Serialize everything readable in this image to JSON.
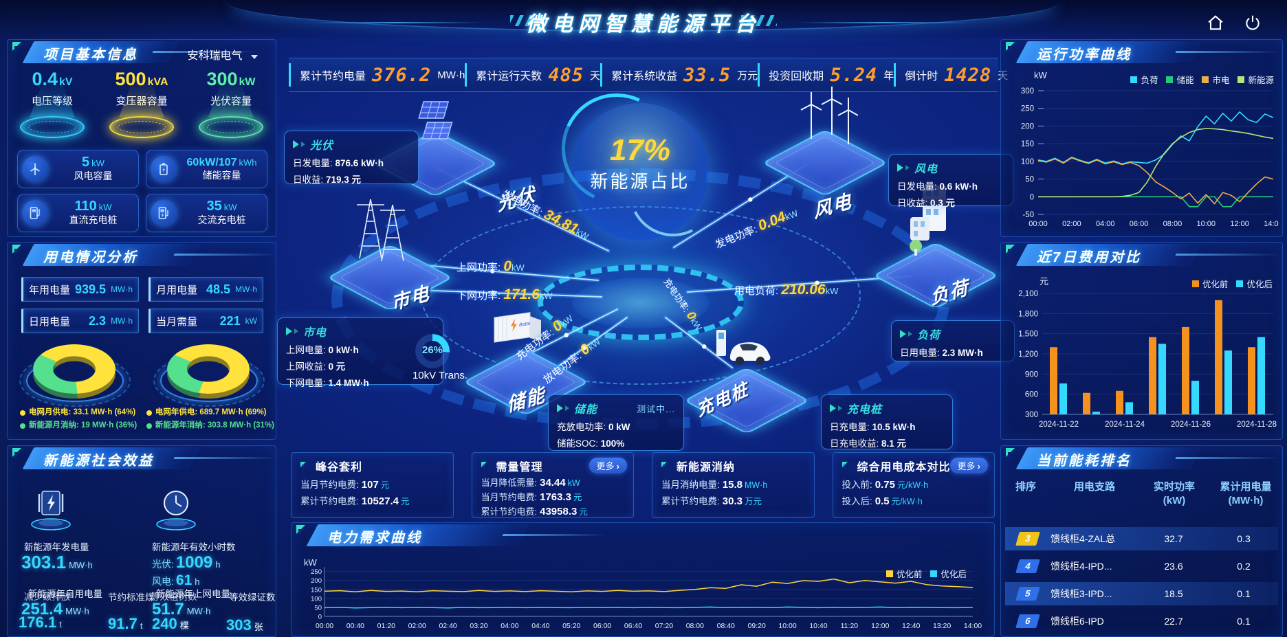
{
  "header": {
    "title": "微电网智慧能源平台"
  },
  "top_stats": [
    {
      "label": "累计节约电量",
      "value": "376.2",
      "unit": "MW·h"
    },
    {
      "label": "累计运行天数",
      "value": "485",
      "unit": "天"
    },
    {
      "label": "累计系统收益",
      "value": "33.5",
      "unit": "万元"
    },
    {
      "label": "投资回收期",
      "value": "5.24",
      "unit": "年"
    },
    {
      "label": "倒计时",
      "value": "1428",
      "unit": "天"
    }
  ],
  "project_info": {
    "title": "项目基本信息",
    "company": "安科瑞电气",
    "podiums": [
      {
        "value": "0.4",
        "unit": "kV",
        "label": "电压等级",
        "color": "#35d8ff"
      },
      {
        "value": "500",
        "unit": "kVA",
        "label": "变压器容量",
        "color": "#ffe33c"
      },
      {
        "value": "300",
        "unit": "kW",
        "label": "光伏容量",
        "color": "#5cf0a8"
      }
    ],
    "cards": [
      {
        "icon": "wind-turbine-icon",
        "value": "5",
        "unit": "kW",
        "label": "风电容量"
      },
      {
        "icon": "battery-icon",
        "value": "60kW/107",
        "unit": "kWh",
        "label": "储能容量"
      },
      {
        "icon": "dc-charger-icon",
        "value": "110",
        "unit": "kW",
        "label": "直流充电桩"
      },
      {
        "icon": "ac-charger-icon",
        "value": "35",
        "unit": "kW",
        "label": "交流充电桩"
      }
    ]
  },
  "usage": {
    "title": "用电情况分析",
    "stats": [
      {
        "label": "年用电量",
        "value": "939.5",
        "unit": "MW·h"
      },
      {
        "label": "月用电量",
        "value": "48.5",
        "unit": "MW·h"
      },
      {
        "label": "日用电量",
        "value": "2.3",
        "unit": "MW·h"
      },
      {
        "label": "当月需量",
        "value": "221",
        "unit": "kW"
      }
    ],
    "donuts": [
      {
        "slices": [
          {
            "label": "电网月供电",
            "value": "33.1 MW·h (64%)",
            "pct": 64,
            "color": "#ffe33c"
          },
          {
            "label": "新能源月消纳",
            "value": "19 MW·h (36%)",
            "pct": 36,
            "color": "#54e08c"
          }
        ]
      },
      {
        "slices": [
          {
            "label": "电网年供电",
            "value": "689.7 MW·h (69%)",
            "pct": 69,
            "color": "#ffe33c"
          },
          {
            "label": "新能源年消纳",
            "value": "303.8 MW·h (31%)",
            "pct": 31,
            "color": "#54e08c"
          }
        ]
      }
    ]
  },
  "social": {
    "title": "新能源社会效益",
    "gen": {
      "label": "新能源年发电量",
      "value": "303.1",
      "unit": "MW·h"
    },
    "hours": {
      "label": "新能源年有效小时数",
      "pv_label": "光伏:",
      "pv_value": "1009",
      "pv_unit": "h",
      "wind_label": "风电:",
      "wind_value": "61",
      "wind_unit": "h"
    },
    "self_use": {
      "label": "新能源年自用电量",
      "value": "251.4",
      "unit": "MW·h"
    },
    "co2": {
      "label": "减少碳排放",
      "value": "176.1",
      "unit": "t"
    },
    "coal": {
      "label": "节约标准煤",
      "value": "91.7",
      "unit": "t"
    },
    "export": {
      "label": "新能源年上网电量",
      "value": "51.7",
      "unit": "MW·h"
    },
    "trees": {
      "label": "等效植树数",
      "value": "240",
      "unit": "棵"
    },
    "certs": {
      "label": "等效绿证数",
      "value": "303",
      "unit": "张"
    }
  },
  "center": {
    "kpi_value": "17%",
    "kpi_label": "新能源占比",
    "nodes": {
      "pv": "光伏",
      "grid": "市电",
      "storage": "储能",
      "wind": "风电",
      "load": "负荷",
      "charger": "充电桩"
    },
    "flows": {
      "pv_gen": {
        "label": "发电功率:",
        "value": "34.81",
        "unit": "kW"
      },
      "grid_up": {
        "label": "上网功率:",
        "value": "0",
        "unit": "kW"
      },
      "grid_down": {
        "label": "下网功率:",
        "value": "171.6",
        "unit": "kW"
      },
      "charge": {
        "label": "充电功率:",
        "value": "0",
        "unit": "kW"
      },
      "discharge": {
        "label": "放电功率:",
        "value": "0",
        "unit": "kW"
      },
      "wind_gen": {
        "label": "发电功率:",
        "value": "0.04",
        "unit": "kW"
      },
      "load_power": {
        "label": "用电负荷:",
        "value": "210.06",
        "unit": "kW"
      },
      "charger_power": {
        "label": "充电功率:",
        "value": "0",
        "unit": "kW"
      }
    },
    "transformer": {
      "pct": 26,
      "pct_text": "26%",
      "label": "10kV Trans."
    },
    "panels": {
      "pv": {
        "title": "光伏",
        "rows": [
          {
            "k": "日发电量:",
            "v": "876.6 kW·h"
          },
          {
            "k": "日收益:",
            "v": "719.3 元"
          }
        ]
      },
      "grid": {
        "title": "市电",
        "rows": [
          {
            "k": "上网电量:",
            "v": "0 kW·h"
          },
          {
            "k": "上网收益:",
            "v": "0 元"
          },
          {
            "k": "下网电量:",
            "v": "1.4 MW·h"
          }
        ]
      },
      "storage": {
        "title": "储能",
        "badge": "测试中...",
        "rows": [
          {
            "k": "充放电功率:",
            "v": "0 kW"
          },
          {
            "k": "储能SOC:",
            "v": "100%"
          }
        ]
      },
      "wind": {
        "title": "风电",
        "rows": [
          {
            "k": "日发电量:",
            "v": "0.6 kW·h"
          },
          {
            "k": "日收益:",
            "v": "0.3 元"
          }
        ]
      },
      "load": {
        "title": "负荷",
        "rows": [
          {
            "k": "日用电量:",
            "v": "2.3 MW·h"
          }
        ]
      },
      "charger": {
        "title": "充电桩",
        "rows": [
          {
            "k": "日充电量:",
            "v": "10.5 kW·h"
          },
          {
            "k": "日充电收益:",
            "v": "8.1 元"
          }
        ]
      }
    }
  },
  "bottom_panels": [
    {
      "title": "峰谷套利",
      "more": "",
      "rows": [
        {
          "k": "当月节约电费:",
          "v": "107",
          "u": "元"
        },
        {
          "k": "累计节约电费:",
          "v": "10527.4",
          "u": "元"
        }
      ]
    },
    {
      "title": "需量管理",
      "more": "更多",
      "rows": [
        {
          "k": "当月降低需量:",
          "v": "34.44",
          "u": "kW"
        },
        {
          "k": "当月节约电费:",
          "v": "1763.3",
          "u": "元"
        },
        {
          "k": "累计节约电费:",
          "v": "43958.3",
          "u": "元"
        }
      ]
    },
    {
      "title": "新能源消纳",
      "more": "",
      "rows": [
        {
          "k": "当月消纳电量:",
          "v": "15.8",
          "u": "MW·h"
        },
        {
          "k": "累计节约电费:",
          "v": "30.3",
          "u": "万元"
        }
      ]
    },
    {
      "title": "综合用电成本对比",
      "more": "更多",
      "rows": [
        {
          "k": "投入前:",
          "v": "0.75",
          "u": "元/kW·h"
        },
        {
          "k": "投入后:",
          "v": "0.5",
          "u": "元/kW·h"
        }
      ]
    }
  ],
  "chart_data": [
    {
      "id": "power_curve",
      "type": "line",
      "title": "运行功率曲线",
      "ylabel": "kW",
      "ylim": [
        -50,
        300
      ],
      "yticks": [
        300,
        250,
        200,
        150,
        100,
        50,
        0,
        -50
      ],
      "xticks": [
        "00:00",
        "02:00",
        "04:00",
        "06:00",
        "08:00",
        "10:00",
        "12:00",
        "14:00"
      ],
      "legend_position": "top-right",
      "series": [
        {
          "name": "负荷",
          "color": "#35d8ff",
          "values": [
            104,
            100,
            109,
            97,
            112,
            103,
            96,
            106,
            95,
            101,
            93,
            99,
            97,
            95,
            104,
            120,
            148,
            172,
            158,
            198,
            228,
            206,
            236,
            214,
            240,
            218,
            210,
            234,
            224
          ]
        },
        {
          "name": "储能",
          "color": "#22c97e",
          "values": [
            0,
            0,
            0,
            0,
            0,
            0,
            0,
            0,
            0,
            0,
            0,
            0,
            0,
            0,
            0,
            0,
            0,
            0,
            -28,
            -28,
            0,
            0,
            -28,
            -28,
            0,
            0,
            0,
            0,
            0
          ]
        },
        {
          "name": "市电",
          "color": "#e8b04a",
          "values": [
            102,
            98,
            107,
            95,
            110,
            101,
            94,
            104,
            93,
            99,
            91,
            97,
            88,
            68,
            42,
            28,
            12,
            -6,
            10,
            -18,
            6,
            -20,
            12,
            4,
            -14,
            12,
            36,
            56,
            50
          ]
        },
        {
          "name": "新能源",
          "color": "#b2e874",
          "values": [
            0,
            0,
            0,
            0,
            0,
            0,
            0,
            0,
            0,
            0,
            1,
            4,
            12,
            42,
            86,
            122,
            150,
            168,
            182,
            190,
            193,
            192,
            190,
            186,
            183,
            179,
            174,
            169,
            165
          ]
        }
      ]
    },
    {
      "id": "cost_comp",
      "type": "bar",
      "title": "近7日费用对比",
      "ylabel": "元",
      "ylim": [
        300,
        2100
      ],
      "yticks": [
        "2,100",
        "1,800",
        "1,500",
        "1,200",
        "900",
        "600",
        "300"
      ],
      "categories": [
        "2024-11-22",
        "2024-11-23",
        "2024-11-24",
        "2024-11-25",
        "2024-11-26",
        "2024-11-27",
        "2024-11-28"
      ],
      "xtick_labels": [
        "2024-11-22",
        "2024-11-24",
        "2024-11-26",
        "2024-11-28"
      ],
      "legend_position": "top-right",
      "series": [
        {
          "name": "优化前",
          "color": "#f5921e",
          "values": [
            1300,
            620,
            650,
            1450,
            1600,
            2000,
            1300
          ]
        },
        {
          "name": "优化后",
          "color": "#35d8ff",
          "values": [
            760,
            340,
            480,
            1350,
            800,
            1250,
            1450
          ]
        }
      ]
    },
    {
      "id": "demand_curve",
      "type": "line",
      "title": "电力需求曲线",
      "ylabel": "kW",
      "ylim": [
        0,
        260
      ],
      "yticks": [
        250,
        200,
        150,
        100,
        50,
        0
      ],
      "xticks": [
        "00:00",
        "00:40",
        "01:20",
        "02:00",
        "02:40",
        "03:20",
        "04:00",
        "04:40",
        "05:20",
        "06:00",
        "06:40",
        "07:20",
        "08:00",
        "08:40",
        "09:20",
        "10:00",
        "10:40",
        "11:20",
        "12:00",
        "12:40",
        "13:20",
        "14:00"
      ],
      "legend_position": "top-right",
      "series": [
        {
          "name": "优化前",
          "color": "#ffd43c",
          "values": [
            140,
            143,
            137,
            144,
            139,
            141,
            137,
            143,
            140,
            138,
            144,
            139,
            142,
            138,
            143,
            140,
            137,
            142,
            139,
            144,
            140,
            142,
            138,
            145,
            150,
            160,
            156,
            176,
            168,
            190,
            183,
            199,
            195,
            208,
            187,
            200,
            192,
            185,
            195,
            177,
            169,
            165,
            161
          ]
        },
        {
          "name": "优化后",
          "color": "#35d8ff",
          "values": [
            48,
            50,
            47,
            49,
            51,
            48,
            50,
            49,
            47,
            50,
            48,
            49,
            51,
            48,
            50,
            49,
            48,
            50,
            49,
            51,
            48,
            50,
            49,
            48,
            50,
            52,
            49,
            51,
            50,
            49,
            52,
            50,
            48,
            51,
            49,
            50,
            52,
            49,
            51,
            50,
            49,
            48,
            50
          ]
        }
      ]
    }
  ],
  "ranking": {
    "title": "当前能耗排名",
    "columns": [
      {
        "l1": "排序",
        "l2": ""
      },
      {
        "l1": "用电支路",
        "l2": ""
      },
      {
        "l1": "实时功率",
        "l2": "(kW)"
      },
      {
        "l1": "累计用电量",
        "l2": "(MW·h)"
      }
    ],
    "rows": [
      {
        "rank": "3",
        "name": "馈线柜4-ZAL总",
        "power": "32.7",
        "energy": "0.3",
        "highlight": true,
        "rank_color": "#f0c419"
      },
      {
        "rank": "4",
        "name": "馈线柜4-IPD...",
        "power": "23.6",
        "energy": "0.2",
        "highlight": false,
        "rank_color": "#2f6fe8"
      },
      {
        "rank": "5",
        "name": "馈线柜3-IPD...",
        "power": "18.5",
        "energy": "0.1",
        "highlight": true,
        "rank_color": "#2f6fe8"
      },
      {
        "rank": "6",
        "name": "馈线柜6-IPD",
        "power": "22.7",
        "energy": "0.1",
        "highlight": false,
        "rank_color": "#2f6fe8"
      }
    ]
  }
}
